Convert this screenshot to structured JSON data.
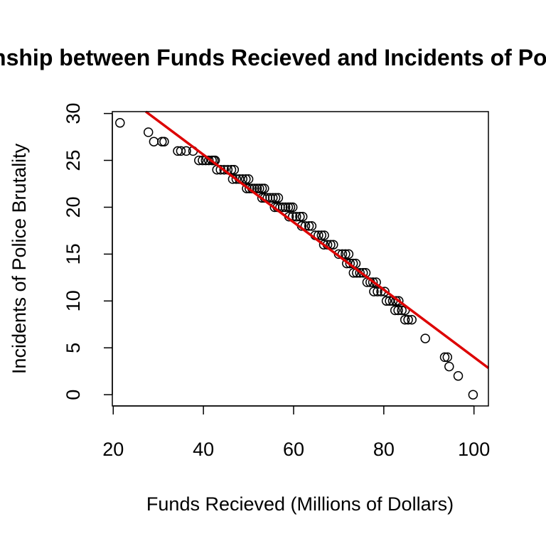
{
  "chart_data": {
    "type": "scatter",
    "title": "Relationship between Funds Recieved and Incidents of Police Brutality",
    "xlabel": "Funds Recieved (Millions of Dollars)",
    "ylabel": "Incidents of Police Brutality",
    "xlim": [
      19.8,
      103.2
    ],
    "ylim": [
      -1.2,
      30.2
    ],
    "xticks": [
      20,
      40,
      60,
      80,
      100
    ],
    "yticks": [
      0,
      5,
      10,
      15,
      20,
      25,
      30
    ],
    "grid": false,
    "legend": "none",
    "point_color": "#000000",
    "fit_line_color": "#dd0000",
    "fit_line": {
      "intercept": 40.0,
      "slope": -0.36
    },
    "points": [
      [
        21.5,
        29
      ],
      [
        27.8,
        28
      ],
      [
        29.0,
        27
      ],
      [
        30.8,
        27
      ],
      [
        31.3,
        27
      ],
      [
        34.3,
        26
      ],
      [
        35.0,
        26
      ],
      [
        36.2,
        26
      ],
      [
        37.7,
        26
      ],
      [
        39.0,
        25
      ],
      [
        39.8,
        25
      ],
      [
        40.5,
        25
      ],
      [
        41.2,
        25
      ],
      [
        41.9,
        25
      ],
      [
        42.3,
        25
      ],
      [
        42.6,
        25
      ],
      [
        43.0,
        24
      ],
      [
        43.8,
        24
      ],
      [
        44.6,
        24
      ],
      [
        45.4,
        24
      ],
      [
        46.2,
        24
      ],
      [
        46.8,
        24
      ],
      [
        46.5,
        23
      ],
      [
        47.3,
        23
      ],
      [
        48.0,
        23
      ],
      [
        48.7,
        23
      ],
      [
        49.4,
        23
      ],
      [
        50.0,
        23
      ],
      [
        49.6,
        22
      ],
      [
        50.2,
        22
      ],
      [
        50.8,
        22
      ],
      [
        51.3,
        22
      ],
      [
        51.9,
        22
      ],
      [
        52.4,
        22
      ],
      [
        53.0,
        22
      ],
      [
        53.5,
        22
      ],
      [
        53.0,
        21
      ],
      [
        53.6,
        21
      ],
      [
        54.2,
        21
      ],
      [
        54.8,
        21
      ],
      [
        55.4,
        21
      ],
      [
        56.0,
        21
      ],
      [
        56.6,
        21
      ],
      [
        55.8,
        20
      ],
      [
        56.4,
        20
      ],
      [
        57.0,
        20
      ],
      [
        57.6,
        20
      ],
      [
        58.2,
        20
      ],
      [
        58.8,
        20
      ],
      [
        59.3,
        20
      ],
      [
        59.8,
        20
      ],
      [
        59.0,
        19
      ],
      [
        59.8,
        19
      ],
      [
        60.6,
        19
      ],
      [
        61.4,
        19
      ],
      [
        62.0,
        19
      ],
      [
        61.8,
        18
      ],
      [
        62.6,
        18
      ],
      [
        63.4,
        18
      ],
      [
        64.0,
        18
      ],
      [
        64.8,
        17
      ],
      [
        65.5,
        17
      ],
      [
        66.2,
        17
      ],
      [
        66.8,
        17
      ],
      [
        66.7,
        16
      ],
      [
        67.5,
        16
      ],
      [
        68.2,
        16
      ],
      [
        68.8,
        16
      ],
      [
        70.0,
        15
      ],
      [
        70.8,
        15
      ],
      [
        71.5,
        15
      ],
      [
        72.2,
        15
      ],
      [
        71.8,
        14
      ],
      [
        72.5,
        14
      ],
      [
        73.2,
        14
      ],
      [
        73.8,
        14
      ],
      [
        73.3,
        13
      ],
      [
        74.0,
        13
      ],
      [
        74.7,
        13
      ],
      [
        75.4,
        13
      ],
      [
        76.0,
        13
      ],
      [
        76.3,
        12
      ],
      [
        77.0,
        12
      ],
      [
        77.6,
        12
      ],
      [
        78.3,
        12
      ],
      [
        77.8,
        11
      ],
      [
        78.6,
        11
      ],
      [
        79.4,
        11
      ],
      [
        80.2,
        11
      ],
      [
        80.6,
        10
      ],
      [
        81.3,
        10
      ],
      [
        82.0,
        10
      ],
      [
        82.7,
        10
      ],
      [
        83.3,
        10
      ],
      [
        82.5,
        9
      ],
      [
        83.2,
        9
      ],
      [
        84.0,
        9
      ],
      [
        84.7,
        9
      ],
      [
        84.7,
        8
      ],
      [
        85.4,
        8
      ],
      [
        86.2,
        8
      ],
      [
        89.2,
        6
      ],
      [
        93.5,
        4
      ],
      [
        94.1,
        4
      ],
      [
        94.5,
        3
      ],
      [
        96.5,
        2
      ],
      [
        99.8,
        0
      ]
    ]
  }
}
